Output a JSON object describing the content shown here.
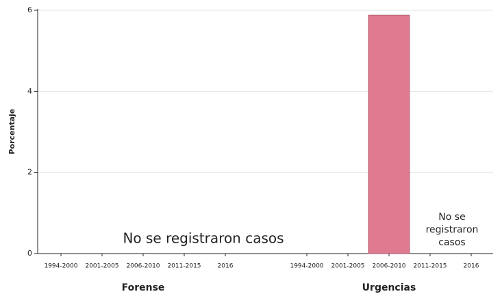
{
  "chart_data": {
    "type": "bar",
    "ylabel": "Porcentaje",
    "ylim": [
      0,
      6
    ],
    "yticks": [
      0,
      2,
      4,
      6
    ],
    "grid": true,
    "color": "#e07a90",
    "groups": [
      {
        "name": "Forense",
        "categories": [
          "1994-2000",
          "2001-2005",
          "2006-2010",
          "2011-2015",
          "2016"
        ],
        "values": [
          null,
          null,
          null,
          null,
          null
        ],
        "annotation": [
          "No se  registraron casos"
        ]
      },
      {
        "name": "Urgencias",
        "categories": [
          "1994-2000",
          "2001-2005",
          "2006-2010",
          "2011-2015",
          "2016"
        ],
        "values": [
          0,
          0,
          5.88,
          null,
          null
        ],
        "annotation": [
          "No se",
          "registraron",
          "casos"
        ]
      }
    ]
  }
}
